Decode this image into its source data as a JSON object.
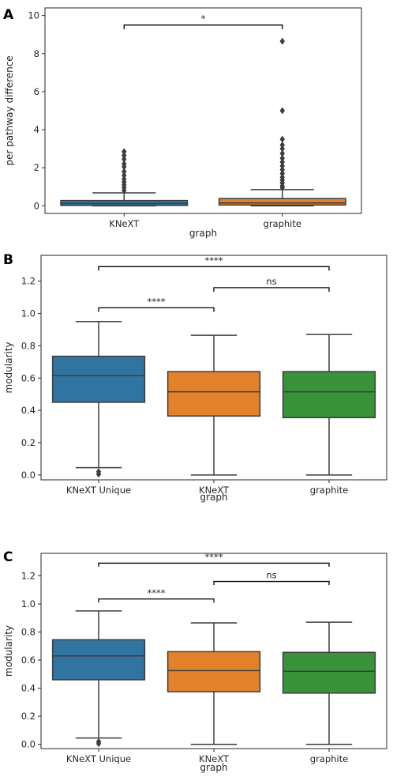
{
  "chart_data": [
    {
      "panel": "A",
      "type": "box",
      "xlabel": "graph",
      "ylabel": "per pathway difference",
      "ylim": [
        -0.4,
        10.4
      ],
      "yticks": [
        0,
        2,
        4,
        6,
        8,
        10
      ],
      "categories": [
        "KNeXT",
        "graphite"
      ],
      "boxes": [
        {
          "category": "KNeXT",
          "color": "#3274a1",
          "whisker_low": 0.0,
          "q1": 0.02,
          "median": 0.12,
          "q3": 0.28,
          "whisker_high": 0.68,
          "outliers": [
            2.85,
            2.65,
            2.45,
            2.2,
            2.05,
            1.8,
            1.6,
            1.4,
            1.25,
            1.1,
            0.95,
            0.8
          ]
        },
        {
          "category": "graphite",
          "color": "#e1812c",
          "whisker_low": 0.0,
          "q1": 0.04,
          "median": 0.15,
          "q3": 0.38,
          "whisker_high": 0.85,
          "outliers": [
            8.65,
            5.0,
            3.5,
            3.2,
            3.0,
            2.75,
            2.5,
            2.3,
            2.1,
            1.9,
            1.7,
            1.5,
            1.35,
            1.2,
            1.05,
            0.95
          ]
        }
      ],
      "significance": [
        {
          "from": "KNeXT",
          "to": "graphite",
          "y": 9.5,
          "tick": 0.22,
          "label": "*"
        }
      ]
    },
    {
      "panel": "B",
      "type": "box",
      "xlabel": "graph",
      "ylabel": "modularity",
      "ylim": [
        -0.03,
        1.36
      ],
      "yticks": [
        0.0,
        0.2,
        0.4,
        0.6,
        0.8,
        1.0,
        1.2
      ],
      "categories": [
        "KNeXT Unique",
        "KNeXT",
        "graphite"
      ],
      "boxes": [
        {
          "category": "KNeXT Unique",
          "color": "#3274a1",
          "whisker_low": 0.045,
          "q1": 0.45,
          "median": 0.615,
          "q3": 0.735,
          "whisker_high": 0.95,
          "outliers": [
            0.02,
            0.005
          ]
        },
        {
          "category": "KNeXT",
          "color": "#e1812c",
          "whisker_low": 0.0,
          "q1": 0.365,
          "median": 0.515,
          "q3": 0.64,
          "whisker_high": 0.865,
          "outliers": []
        },
        {
          "category": "graphite",
          "color": "#3a923a",
          "whisker_low": 0.0,
          "q1": 0.355,
          "median": 0.515,
          "q3": 0.64,
          "whisker_high": 0.87,
          "outliers": []
        }
      ],
      "significance": [
        {
          "from": "KNeXT Unique",
          "to": "KNeXT",
          "y": 1.035,
          "tick": 0.025,
          "label": "****"
        },
        {
          "from": "KNeXT",
          "to": "graphite",
          "y": 1.16,
          "tick": 0.025,
          "label": "ns"
        },
        {
          "from": "KNeXT Unique",
          "to": "graphite",
          "y": 1.29,
          "tick": 0.025,
          "label": "****"
        }
      ]
    },
    {
      "panel": "C",
      "type": "box",
      "xlabel": "graph",
      "ylabel": "modularity",
      "ylim": [
        -0.03,
        1.36
      ],
      "yticks": [
        0.0,
        0.2,
        0.4,
        0.6,
        0.8,
        1.0,
        1.2
      ],
      "categories": [
        "KNeXT Unique",
        "KNeXT",
        "graphite"
      ],
      "boxes": [
        {
          "category": "KNeXT Unique",
          "color": "#3274a1",
          "whisker_low": 0.045,
          "q1": 0.46,
          "median": 0.63,
          "q3": 0.745,
          "whisker_high": 0.95,
          "outliers": [
            0.02,
            0.005
          ]
        },
        {
          "category": "KNeXT",
          "color": "#e1812c",
          "whisker_low": 0.0,
          "q1": 0.375,
          "median": 0.525,
          "q3": 0.66,
          "whisker_high": 0.865,
          "outliers": []
        },
        {
          "category": "graphite",
          "color": "#3a923a",
          "whisker_low": 0.0,
          "q1": 0.365,
          "median": 0.52,
          "q3": 0.655,
          "whisker_high": 0.87,
          "outliers": []
        }
      ],
      "significance": [
        {
          "from": "KNeXT Unique",
          "to": "KNeXT",
          "y": 1.035,
          "tick": 0.025,
          "label": "****"
        },
        {
          "from": "KNeXT",
          "to": "graphite",
          "y": 1.16,
          "tick": 0.025,
          "label": "ns"
        },
        {
          "from": "KNeXT Unique",
          "to": "graphite",
          "y": 1.29,
          "tick": 0.025,
          "label": "****"
        }
      ]
    }
  ],
  "colors": {
    "line": "#3d3d3d",
    "axes": "#262626"
  }
}
